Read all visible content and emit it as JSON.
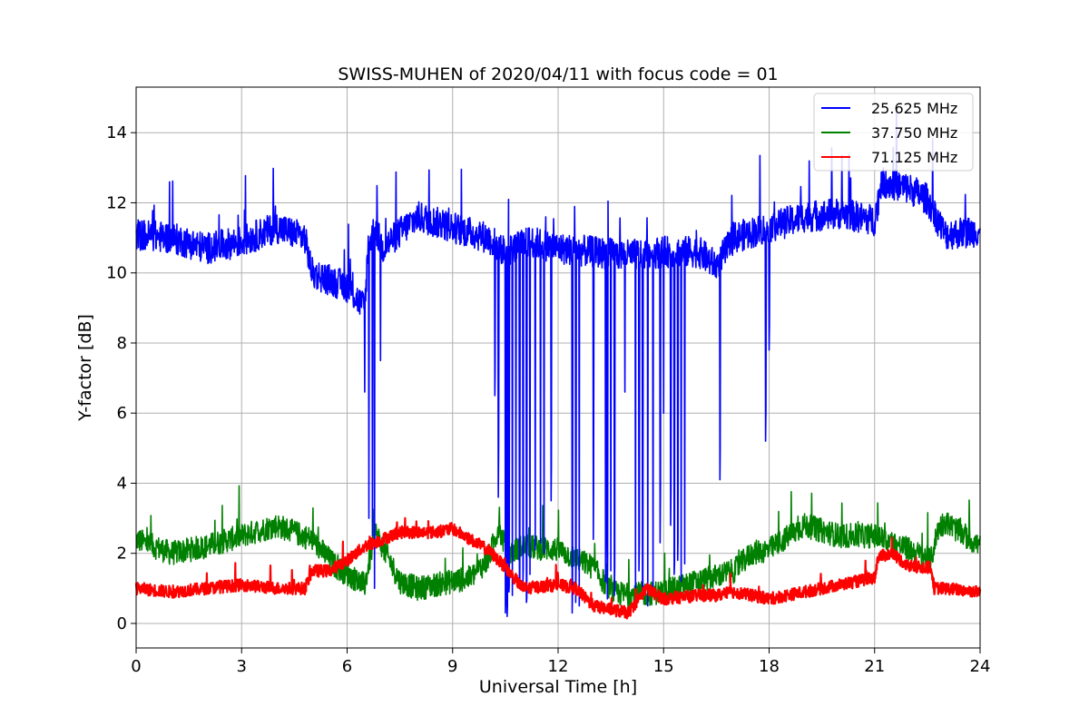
{
  "chart_data": {
    "type": "line",
    "title": "SWISS-MUHEN of 2020/04/11 with focus code = 01",
    "xlabel": "Universal Time [h]",
    "ylabel": "Y-factor [dB]",
    "xlim": [
      0,
      24
    ],
    "ylim": [
      -0.7,
      15.3
    ],
    "xticks": [
      0,
      3,
      6,
      9,
      12,
      15,
      18,
      21,
      24
    ],
    "xtick_labels": [
      "0",
      "3",
      "6",
      "9",
      "12",
      "15",
      "18",
      "21",
      "24"
    ],
    "yticks": [
      0,
      2,
      4,
      6,
      8,
      10,
      12,
      14
    ],
    "ytick_labels": [
      "0",
      "2",
      "4",
      "6",
      "8",
      "10",
      "12",
      "14"
    ],
    "grid": true,
    "legend_position": "top-right",
    "series": [
      {
        "name": "25.625 MHz",
        "color": "#0000ff",
        "x": [
          0,
          1,
          2,
          3,
          4,
          4.8,
          5,
          6,
          6.5,
          6.6,
          6.8,
          7,
          8,
          9,
          10,
          10.5,
          11,
          11.2,
          12,
          13,
          14,
          15,
          16,
          16.5,
          17,
          18,
          19,
          20,
          21,
          21.2,
          22,
          22.5,
          23,
          24
        ],
        "y": [
          11.1,
          11.0,
          10.7,
          10.9,
          11.3,
          11.0,
          10.0,
          9.6,
          9.0,
          10.8,
          11.3,
          10.7,
          11.6,
          11.3,
          11.0,
          10.6,
          10.8,
          10.9,
          10.7,
          10.6,
          10.5,
          10.6,
          10.6,
          10.2,
          11.0,
          11.3,
          11.6,
          11.7,
          11.5,
          12.6,
          12.4,
          12.1,
          11.1,
          11.2
        ],
        "noise": 0.9,
        "spike_width": 2.1,
        "dips": [
          [
            6.5,
            6.6
          ],
          [
            6.62,
            3.0
          ],
          [
            6.72,
            2.5
          ],
          [
            6.78,
            1.0
          ],
          [
            6.95,
            7.5
          ],
          [
            10.2,
            6.5
          ],
          [
            10.3,
            3.6
          ],
          [
            10.5,
            0.3
          ],
          [
            10.55,
            0.2
          ],
          [
            10.6,
            0.9
          ],
          [
            10.7,
            0.8
          ],
          [
            10.8,
            2.4
          ],
          [
            10.9,
            1.0
          ],
          [
            11.0,
            1.2
          ],
          [
            11.1,
            0.6
          ],
          [
            11.2,
            1.4
          ],
          [
            11.35,
            2.1
          ],
          [
            11.5,
            2.3
          ],
          [
            11.6,
            2.0
          ],
          [
            11.8,
            3.5
          ],
          [
            12.4,
            0.3
          ],
          [
            12.5,
            0.6
          ],
          [
            12.6,
            0.5
          ],
          [
            13.0,
            2.4
          ],
          [
            13.35,
            1.2
          ],
          [
            13.4,
            0.7
          ],
          [
            13.5,
            1.5
          ],
          [
            13.6,
            0.8
          ],
          [
            13.9,
            6.6
          ],
          [
            14.2,
            0.7
          ],
          [
            14.3,
            1.5
          ],
          [
            14.4,
            0.9
          ],
          [
            14.55,
            0.5
          ],
          [
            14.7,
            1.0
          ],
          [
            14.9,
            2.3
          ],
          [
            15.0,
            6.0
          ],
          [
            15.2,
            2.8
          ],
          [
            15.3,
            1.4
          ],
          [
            15.4,
            1.8
          ],
          [
            15.5,
            1.2
          ],
          [
            15.6,
            1.7
          ],
          [
            16.6,
            4.1
          ],
          [
            17.9,
            5.2
          ],
          [
            18.0,
            7.8
          ]
        ]
      },
      {
        "name": "37.750 MHz",
        "color": "#008000",
        "x": [
          0,
          1,
          2,
          3,
          4,
          5,
          5.7,
          6.5,
          6.8,
          7.5,
          8,
          9,
          9.5,
          10,
          10.3,
          10.6,
          11,
          12,
          13,
          13.5,
          14,
          15,
          16,
          17,
          17.5,
          18,
          19,
          20,
          21,
          22,
          22.6,
          22.8,
          23,
          24
        ],
        "y": [
          2.4,
          2.0,
          2.2,
          2.5,
          2.8,
          2.4,
          1.6,
          1.1,
          2.6,
          1.2,
          1.0,
          1.2,
          1.3,
          1.8,
          2.7,
          2.0,
          2.2,
          2.1,
          1.6,
          0.9,
          0.8,
          0.9,
          1.2,
          1.5,
          2.0,
          2.1,
          2.8,
          2.5,
          2.5,
          2.1,
          1.8,
          2.7,
          2.9,
          2.2
        ],
        "noise": 0.7,
        "spike_width": 1.2,
        "dips": []
      },
      {
        "name": "71.125 MHz",
        "color": "#ff0000",
        "x": [
          0,
          1,
          2,
          3,
          4,
          4.8,
          5,
          5.5,
          6,
          6.5,
          7,
          7.5,
          8,
          8.5,
          9,
          9.5,
          10,
          10.5,
          11,
          12,
          12.5,
          13,
          13.5,
          14,
          14.5,
          15,
          16,
          16.5,
          17,
          17.5,
          18,
          18.5,
          19,
          20,
          21,
          21.1,
          21.5,
          22,
          22.6,
          22.7,
          23,
          24
        ],
        "y": [
          1.0,
          0.9,
          1.0,
          1.1,
          1.0,
          1.0,
          1.5,
          1.5,
          1.8,
          2.2,
          2.4,
          2.6,
          2.6,
          2.6,
          2.7,
          2.4,
          2.1,
          1.6,
          1.0,
          1.1,
          1.0,
          0.5,
          0.4,
          0.3,
          1.0,
          0.7,
          0.8,
          0.8,
          0.9,
          0.8,
          0.7,
          0.8,
          0.9,
          1.1,
          1.3,
          1.9,
          2.0,
          1.6,
          1.6,
          1.0,
          1.0,
          0.9
        ],
        "noise": 0.35,
        "spike_width": 0.6,
        "dips": []
      }
    ]
  }
}
